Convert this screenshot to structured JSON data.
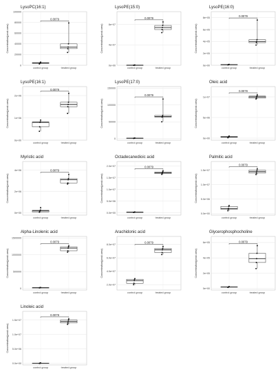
{
  "chart_data": [
    {
      "type": "box",
      "title": "LysoPC(16:1)",
      "ylabel": "Concentration(peak area)",
      "categories": [
        "control group",
        "treated group"
      ],
      "yticks": [
        "0",
        "20000",
        "40000",
        "60000",
        "80000",
        "100000"
      ],
      "ylim": [
        0,
        100000
      ],
      "p_value": "0.0079",
      "series": [
        {
          "name": "control group",
          "points": [
            2500,
            3500,
            4200,
            5000,
            6000
          ]
        },
        {
          "name": "treated group",
          "points": [
            24000,
            31000,
            34000,
            40000,
            79000
          ]
        }
      ]
    },
    {
      "type": "box",
      "title": "LysoPE(15:0)",
      "ylabel": "Concentration(peak area)",
      "categories": [
        "control group",
        "treated group"
      ],
      "yticks": [
        "0e+00",
        "4e+07",
        "8e+07"
      ],
      "ylim": [
        0,
        105000000
      ],
      "p_value": "0.0079",
      "series": [
        {
          "name": "control group",
          "points": [
            100000,
            200000,
            300000,
            400000,
            500000
          ]
        },
        {
          "name": "treated group",
          "points": [
            64000000,
            70000000,
            74000000,
            78000000,
            85000000
          ]
        }
      ]
    },
    {
      "type": "box",
      "title": "LysoPE(16:0)",
      "ylabel": "Concentration(peak area)",
      "categories": [
        "control group",
        "treated group"
      ],
      "yticks": [
        "0e+00",
        "2e+05",
        "4e+05",
        "6e+05",
        "8e+05"
      ],
      "ylim": [
        0,
        900000
      ],
      "p_value": "0.0079",
      "series": [
        {
          "name": "control group",
          "points": [
            7000,
            9000,
            11000,
            13000,
            15000
          ]
        },
        {
          "name": "treated group",
          "points": [
            340000,
            380000,
            400000,
            430000,
            760000
          ]
        }
      ]
    },
    {
      "type": "box",
      "title": "LysoPE(16:1)",
      "ylabel": "Concentration(peak area)",
      "categories": [
        "control group",
        "treated group"
      ],
      "yticks": [
        "0e+00",
        "1e+06",
        "2e+06"
      ],
      "ylim": [
        0,
        2400000
      ],
      "p_value": "0.0079",
      "series": [
        {
          "name": "control group",
          "points": [
            400000,
            600000,
            800000,
            820000,
            900000
          ]
        },
        {
          "name": "treated group",
          "points": [
            1200000,
            1500000,
            1600000,
            1700000,
            2100000
          ]
        }
      ]
    },
    {
      "type": "box",
      "title": "LysoPE(17:0)",
      "ylabel": "Concentration(peak area)",
      "categories": [
        "control group",
        "treated group"
      ],
      "yticks": [
        "0",
        "50000",
        "100000",
        "150000"
      ],
      "ylim": [
        -5000,
        155000
      ],
      "p_value": "0.0079",
      "series": [
        {
          "name": "control group",
          "points": [
            500,
            800,
            1000,
            1300,
            1600
          ]
        },
        {
          "name": "treated group",
          "points": [
            50000,
            64000,
            66000,
            69000,
            118000
          ]
        }
      ]
    },
    {
      "type": "box",
      "title": "Oleic acid",
      "ylabel": "Concentration(peak area)",
      "categories": [
        "control group",
        "treated group"
      ],
      "yticks": [
        "0e+00",
        "5e+06",
        "1e+07"
      ],
      "ylim": [
        -500000,
        12500000
      ],
      "p_value": "0.0079",
      "series": [
        {
          "name": "control group",
          "points": [
            100000,
            200000,
            300000,
            400000,
            500000
          ]
        },
        {
          "name": "treated group",
          "points": [
            9500000,
            9700000,
            10000000,
            10200000,
            10500000
          ]
        }
      ]
    },
    {
      "type": "box",
      "title": "Myristic acid",
      "ylabel": "Concentration(peak area)",
      "categories": [
        "control group",
        "treated group"
      ],
      "yticks": [
        "0e+00",
        "2e+06",
        "4e+06"
      ],
      "ylim": [
        -200000,
        4800000
      ],
      "p_value": "0.0079",
      "series": [
        {
          "name": "control group",
          "points": [
            80000,
            100000,
            200000,
            250000,
            500000
          ]
        },
        {
          "name": "treated group",
          "points": [
            2700000,
            2800000,
            3100000,
            3200000,
            3600000
          ]
        }
      ]
    },
    {
      "type": "box",
      "title": "Octadecanedioic acid",
      "ylabel": "Concentration(peak area)",
      "categories": [
        "control group",
        "treated group"
      ],
      "yticks": [
        "0.0e+00",
        "5.0e+06",
        "1.0e+07",
        "1.5e+07",
        "2.0e+07"
      ],
      "ylim": [
        -1000000,
        22000000
      ],
      "p_value": "0.0079",
      "series": [
        {
          "name": "control group",
          "points": [
            150000,
            200000,
            250000,
            300000,
            350000
          ]
        },
        {
          "name": "treated group",
          "points": [
            16500000,
            16800000,
            17200000,
            17500000,
            18000000
          ]
        }
      ]
    },
    {
      "type": "box",
      "title": "Palmitic acid",
      "ylabel": "Concentration(peak area)",
      "categories": [
        "control group",
        "treated group"
      ],
      "yticks": [
        "0.0e+00",
        "5.0e+06",
        "1.0e+07",
        "1.5e+07"
      ],
      "ylim": [
        -500000,
        18000000
      ],
      "p_value": "0.0079",
      "series": [
        {
          "name": "control group",
          "points": [
            1000000,
            1500000,
            1800000,
            2500000,
            2800000
          ]
        },
        {
          "name": "treated group",
          "points": [
            13500000,
            14000000,
            14500000,
            15000000,
            15500000
          ]
        }
      ]
    },
    {
      "type": "box",
      "title": "Alpha-Linolenic acid",
      "ylabel": "Concentration(peak area)",
      "categories": [
        "control group",
        "treated group"
      ],
      "yticks": [
        "0",
        "500000",
        "1000000",
        "1500000"
      ],
      "ylim": [
        -50000,
        1550000
      ],
      "p_value": "0.0079",
      "series": [
        {
          "name": "control group",
          "points": [
            15000,
            18000,
            20000,
            22000,
            25000
          ]
        },
        {
          "name": "treated group",
          "points": [
            1080000,
            1120000,
            1200000,
            1240000,
            1270000
          ]
        }
      ]
    },
    {
      "type": "box",
      "title": "Arachidonic acid",
      "ylabel": "Concentration(peak area)",
      "categories": [
        "control group",
        "treated group"
      ],
      "yticks": [
        "2.0e+07",
        "4.0e+07",
        "6.0e+07",
        "8.0e+07"
      ],
      "ylim": [
        12000000,
        92000000
      ],
      "p_value": "0.0079",
      "series": [
        {
          "name": "control group",
          "points": [
            20000000,
            22000000,
            26000000,
            28000000,
            29000000
          ]
        },
        {
          "name": "treated group",
          "points": [
            65000000,
            68000000,
            72000000,
            74000000,
            77000000
          ]
        }
      ]
    },
    {
      "type": "box",
      "title": "Glycerophosphocholine",
      "ylabel": "Concentration(peak area)",
      "categories": [
        "control group",
        "treated group"
      ],
      "yticks": [
        "0e+00",
        "2e+05",
        "4e+05",
        "6e+05"
      ],
      "ylim": [
        -20000,
        680000
      ],
      "p_value": "0.0079",
      "series": [
        {
          "name": "control group",
          "points": [
            15000,
            17000,
            20000,
            22000,
            25000
          ]
        },
        {
          "name": "treated group",
          "points": [
            260000,
            340000,
            390000,
            460000,
            560000
          ]
        }
      ]
    },
    {
      "type": "box",
      "title": "Linoleic acid",
      "ylabel": "Concentration(peak area)",
      "categories": [
        "control group",
        "treated group"
      ],
      "yticks": [
        "0.0e+00",
        "5.0e+06",
        "1.0e+07",
        "1.5e+07"
      ],
      "ylim": [
        -500000,
        18000000
      ],
      "p_value": "0.0079",
      "series": [
        {
          "name": "control group",
          "points": [
            50000,
            80000,
            100000,
            150000,
            200000
          ]
        },
        {
          "name": "treated group",
          "points": [
            13500000,
            14000000,
            14500000,
            15000000,
            15400000
          ]
        }
      ]
    }
  ]
}
